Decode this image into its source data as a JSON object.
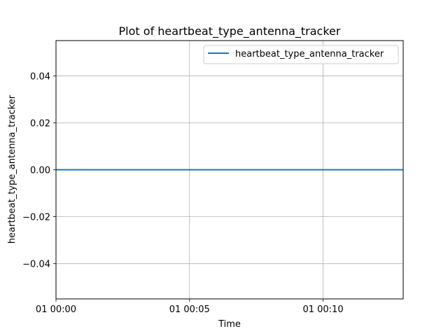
{
  "chart_data": {
    "type": "line",
    "title": "Plot of heartbeat_type_antenna_tracker",
    "xlabel": "Time",
    "ylabel": "heartbeat_type_antenna_tracker",
    "x_ticks": [
      "01 00:00",
      "01 00:05",
      "01 00:10"
    ],
    "y_ticks": [
      0.04,
      0.02,
      0.0,
      -0.02,
      -0.04
    ],
    "y_tick_labels": [
      "0.04",
      "0.02",
      "0.00",
      "−0.02",
      "−0.04"
    ],
    "xlim": [
      "01 00:00",
      "01 00:13"
    ],
    "ylim": [
      -0.055,
      0.055
    ],
    "grid": true,
    "legend_position": "top-right",
    "series": [
      {
        "name": "heartbeat_type_antenna_tracker",
        "color": "#1f77b4",
        "x": [
          "01 00:00",
          "01 00:13"
        ],
        "values": [
          0,
          0
        ]
      }
    ]
  }
}
